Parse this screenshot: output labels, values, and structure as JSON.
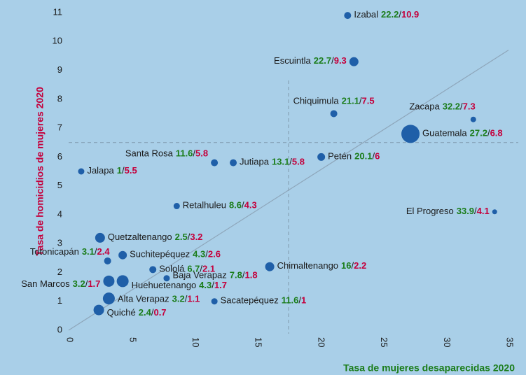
{
  "chart_data": {
    "type": "bubble",
    "xlabel": "Tasa de mujeres desaparecidas 2020",
    "ylabel": "Tasa de homicidios de mujeres 2020",
    "separator": "/",
    "categories": [
      "Izabal",
      "Escuintla",
      "Chiquimula",
      "Zacapa",
      "Guatemala",
      "Santa Rosa",
      "Jutiapa",
      "Petén",
      "Jalapa",
      "Retalhuleu",
      "El Progreso",
      "Quetzaltenango",
      "Totonicapán",
      "Suchitepéquez",
      "Sololá",
      "Chimaltenango",
      "Baja Verapaz",
      "San Marcos",
      "Huehuetenango",
      "Alta Verapaz",
      "Sacatepéquez",
      "Quiché"
    ],
    "x": [
      22.2,
      22.7,
      21.1,
      32.2,
      27.2,
      11.6,
      13.1,
      20.1,
      1,
      8.6,
      33.9,
      2.5,
      3.1,
      4.3,
      6.7,
      16,
      7.8,
      3.2,
      4.3,
      3.2,
      11.6,
      2.4
    ],
    "y": [
      10.9,
      9.3,
      7.5,
      7.3,
      6.8,
      5.8,
      5.8,
      6,
      5.5,
      4.3,
      4.1,
      3.2,
      2.4,
      2.6,
      2.1,
      2.2,
      1.8,
      1.7,
      1.7,
      1.1,
      1,
      0.7
    ],
    "sizes": [
      500,
      845,
      500,
      320,
      3380,
      500,
      500,
      605,
      405,
      405,
      245,
      980,
      500,
      720,
      500,
      845,
      405,
      1280,
      1445,
      1445,
      405,
      1125
    ],
    "color": "#1f5fa8",
    "x_value_color": "#1b7d1b",
    "y_value_color": "#c4003c",
    "xlim": [
      0,
      35
    ],
    "ylim": [
      0,
      11
    ],
    "xticks": [
      0,
      5,
      10,
      15,
      20,
      25,
      30,
      35
    ],
    "yticks": [
      0,
      1,
      2,
      3,
      4,
      5,
      6,
      7,
      8,
      9,
      10,
      11
    ],
    "reference_lines": {
      "x": 17.5,
      "y": 6.5
    },
    "trend_line": {
      "x": [
        0,
        35
      ],
      "y": [
        0,
        9.7
      ]
    }
  }
}
